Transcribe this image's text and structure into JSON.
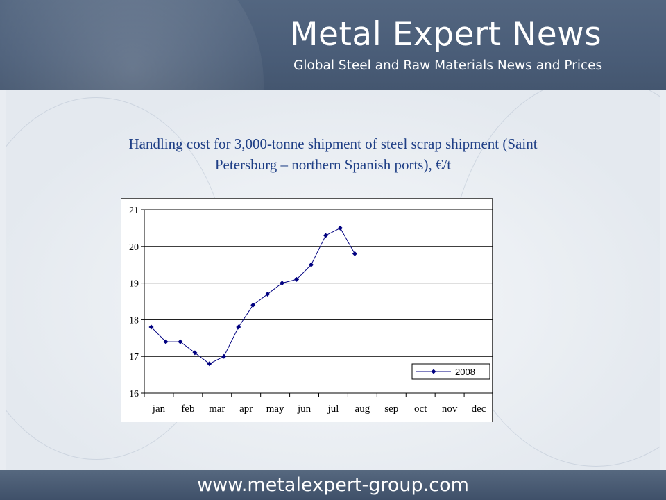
{
  "header": {
    "brand_title": "Metal Expert News",
    "brand_subtitle": "Global Steel and Raw Materials News and Prices"
  },
  "footer": {
    "url": "www.metalexpert-group.com"
  },
  "title_lines": [
    "Handling cost for 3,000-tonne shipment of steel scrap shipment (Saint",
    "Petersburg – northern Spanish ports), €/t"
  ],
  "colors": {
    "series": "#000080",
    "title": "#1f3f86"
  },
  "chart_data": {
    "type": "line",
    "title": "Handling cost for 3,000-tonne shipment of steel scrap shipment (Saint Petersburg – northern Spanish ports), €/t",
    "categories": [
      "jan",
      "feb",
      "mar",
      "apr",
      "may",
      "jun",
      "jul",
      "aug",
      "sep",
      "oct",
      "nov",
      "dec"
    ],
    "ylim": [
      16,
      21
    ],
    "yticks": [
      16,
      17,
      18,
      19,
      20,
      21
    ],
    "grid": true,
    "legend_position": "bottom-right",
    "series": [
      {
        "name": "2008",
        "x": [
          0,
          0.5,
          1,
          1.5,
          2,
          2.5,
          3,
          3.5,
          4,
          4.5,
          5,
          5.5,
          6,
          6.5,
          7
        ],
        "values": [
          17.8,
          17.4,
          17.4,
          17.1,
          16.8,
          17.0,
          17.8,
          18.4,
          18.7,
          19.0,
          19.1,
          19.5,
          20.3,
          20.5,
          19.8
        ]
      }
    ]
  }
}
